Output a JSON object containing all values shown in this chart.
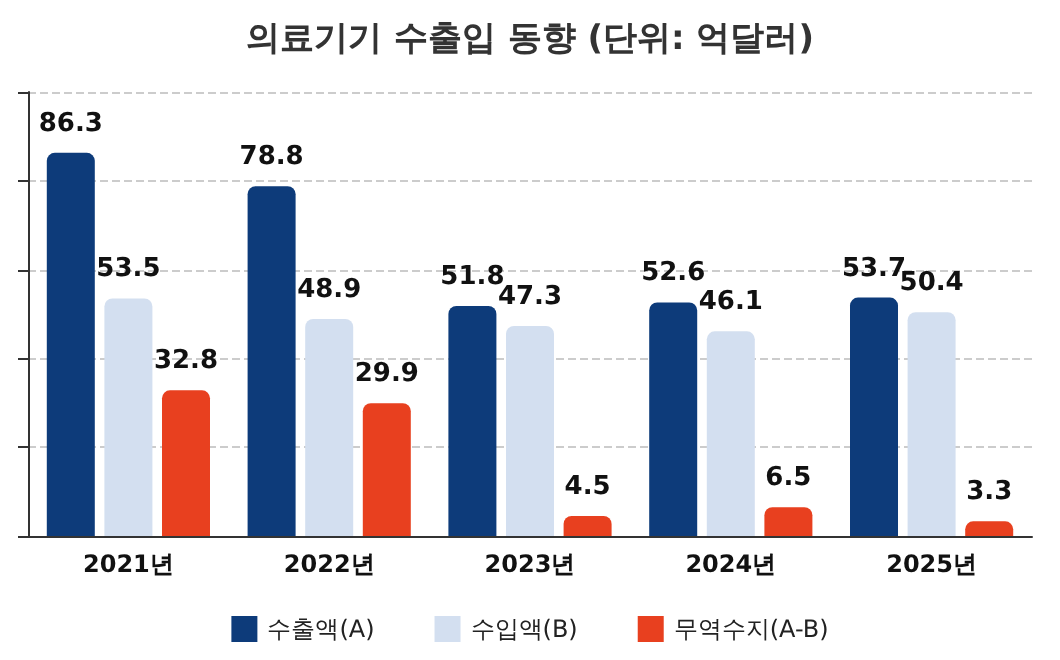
{
  "chart_data": {
    "type": "bar",
    "title": "의료기기 수출입 동향 (단위: 억달러)",
    "categories": [
      "2021년",
      "2022년",
      "2023년",
      "2024년",
      "2025년"
    ],
    "series": [
      {
        "name": "수출액(A)",
        "color": "#0d3b7a",
        "values": [
          86.3,
          78.8,
          51.8,
          52.6,
          53.7
        ]
      },
      {
        "name": "수입액(B)",
        "color": "#d3dff0",
        "values": [
          53.5,
          48.9,
          47.3,
          46.1,
          50.4
        ]
      },
      {
        "name": "무역수지(A-B)",
        "color": "#e8401f",
        "values": [
          32.8,
          29.9,
          4.5,
          6.5,
          3.3
        ]
      }
    ],
    "ylim": [
      0,
      100
    ],
    "yticks": [
      0,
      20,
      40,
      60,
      80,
      100
    ],
    "tick_labels": "x",
    "grid": "y",
    "legend": "bottom",
    "data_labels": true
  }
}
